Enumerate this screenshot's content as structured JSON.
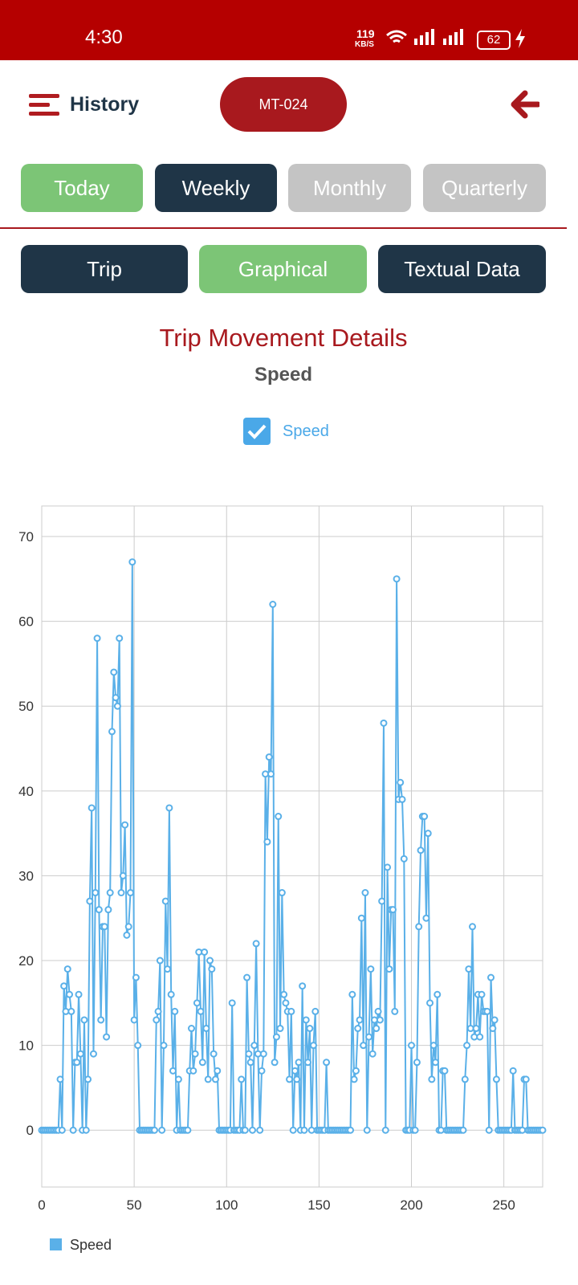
{
  "status_bar": {
    "time": "4:30",
    "speed": "119",
    "speed_unit": "KB/S",
    "battery": "62"
  },
  "header": {
    "title": "History",
    "vehicle": "MT-024"
  },
  "period_tabs": [
    "Today",
    "Weekly",
    "Monthly",
    "Quarterly"
  ],
  "view_tabs": [
    "Trip",
    "Graphical",
    "Textual Data"
  ],
  "chart_data": {
    "type": "line",
    "title": "Trip Movement Details",
    "subtitle": "Speed",
    "x": [
      0,
      1,
      2,
      3,
      4,
      5,
      6,
      7,
      8,
      9,
      10,
      11,
      12,
      13,
      14,
      15,
      16,
      17,
      18,
      19,
      20,
      21,
      22,
      23,
      24,
      25,
      26,
      27,
      28,
      29,
      30,
      31,
      32,
      33,
      34,
      35,
      36,
      37,
      38,
      39,
      40,
      41,
      42,
      43,
      44,
      45,
      46,
      47,
      48,
      49,
      50,
      51,
      52,
      53,
      54,
      55,
      56,
      57,
      58,
      59,
      60,
      61,
      62,
      63,
      64,
      65,
      66,
      67,
      68,
      69,
      70,
      71,
      72,
      73,
      74,
      75,
      76,
      77,
      78,
      79,
      80,
      81,
      82,
      83,
      84,
      85,
      86,
      87,
      88,
      89,
      90,
      91,
      92,
      93,
      94,
      95,
      96,
      97,
      98,
      99,
      100,
      101,
      102,
      103,
      104,
      105,
      106,
      107,
      108,
      109,
      110,
      111,
      112,
      113,
      114,
      115,
      116,
      117,
      118,
      119,
      120,
      121,
      122,
      123,
      124,
      125,
      126,
      127,
      128,
      129,
      130,
      131,
      132,
      133,
      134,
      135,
      136,
      137,
      138,
      139,
      140,
      141,
      142,
      143,
      144,
      145,
      146,
      147,
      148,
      149,
      150,
      151,
      152,
      153,
      154,
      155,
      156,
      157,
      158,
      159,
      160,
      161,
      162,
      163,
      164,
      165,
      166,
      167,
      168,
      169,
      170,
      171,
      172,
      173,
      174,
      175,
      176,
      177,
      178,
      179,
      180,
      181,
      182,
      183,
      184,
      185,
      186,
      187,
      188,
      189,
      190,
      191,
      192,
      193,
      194,
      195,
      196,
      197,
      198,
      199,
      200,
      201,
      202,
      203,
      204,
      205,
      206,
      207,
      208,
      209,
      210,
      211,
      212,
      213,
      214,
      215,
      216,
      217,
      218,
      219,
      220,
      221,
      222,
      223,
      224,
      225,
      226,
      227,
      228,
      229,
      230,
      231,
      232,
      233,
      234,
      235,
      236,
      237,
      238,
      239,
      240,
      241,
      242,
      243,
      244,
      245,
      246,
      247,
      248,
      249,
      250,
      251,
      252,
      253,
      254,
      255,
      256,
      257,
      258,
      259,
      260,
      261,
      262,
      263,
      264,
      265,
      266,
      267,
      268,
      269,
      270,
      271
    ],
    "series": [
      {
        "name": "Speed",
        "color": "#5ab0e8",
        "values": [
          0,
          0,
          0,
          0,
          0,
          0,
          0,
          0,
          0,
          0,
          6,
          0,
          17,
          14,
          19,
          16,
          14,
          0,
          8,
          8,
          16,
          9,
          0,
          13,
          0,
          6,
          27,
          38,
          9,
          28,
          58,
          26,
          13,
          24,
          24,
          11,
          26,
          28,
          47,
          54,
          51,
          50,
          58,
          28,
          30,
          36,
          23,
          24,
          28,
          67,
          13,
          18,
          10,
          0,
          0,
          0,
          0,
          0,
          0,
          0,
          0,
          0,
          13,
          14,
          20,
          0,
          10,
          27,
          19,
          38,
          16,
          7,
          14,
          0,
          6,
          0,
          0,
          0,
          0,
          0,
          7,
          12,
          7,
          9,
          15,
          21,
          14,
          8,
          21,
          12,
          6,
          20,
          19,
          9,
          6,
          7,
          0,
          0,
          0,
          0,
          0,
          0,
          0,
          15,
          0,
          0,
          0,
          0,
          6,
          0,
          0,
          18,
          9,
          8,
          0,
          10,
          22,
          9,
          0,
          7,
          9,
          42,
          34,
          44,
          42,
          62,
          8,
          11,
          37,
          12,
          28,
          16,
          15,
          14,
          6,
          14,
          0,
          7,
          6,
          8,
          0,
          17,
          0,
          13,
          8,
          12,
          0,
          10,
          14,
          0,
          0,
          0,
          0,
          0,
          8,
          0,
          0,
          0,
          0,
          0,
          0,
          0,
          0,
          0,
          0,
          0,
          0,
          0,
          16,
          6,
          7,
          12,
          13,
          25,
          10,
          28,
          0,
          11,
          19,
          9,
          13,
          12,
          14,
          13,
          27,
          48,
          0,
          31,
          19,
          26,
          26,
          14,
          65,
          39,
          41,
          39,
          32,
          0,
          0,
          0,
          10,
          0,
          0,
          8,
          24,
          33,
          37,
          37,
          25,
          35,
          15,
          6,
          10,
          8,
          16,
          0,
          0,
          7,
          7,
          0,
          0,
          0,
          0,
          0,
          0,
          0,
          0,
          0,
          0,
          6,
          10,
          19,
          12,
          24,
          11,
          12,
          16,
          11,
          16,
          14,
          14,
          14,
          0,
          18,
          12,
          13,
          6,
          0,
          0,
          0,
          0,
          0,
          0,
          0,
          0,
          7,
          0,
          0,
          0,
          0,
          0,
          6,
          6,
          0,
          0,
          0,
          0,
          0,
          0,
          0,
          0,
          0
        ]
      }
    ],
    "xlim": [
      0,
      271
    ],
    "ylim": [
      -6.7,
      73.6
    ],
    "xticks": [
      0,
      50,
      100,
      150,
      200,
      250
    ],
    "yticks": [
      0,
      10,
      20,
      30,
      40,
      50,
      60,
      70
    ],
    "grid": true
  }
}
